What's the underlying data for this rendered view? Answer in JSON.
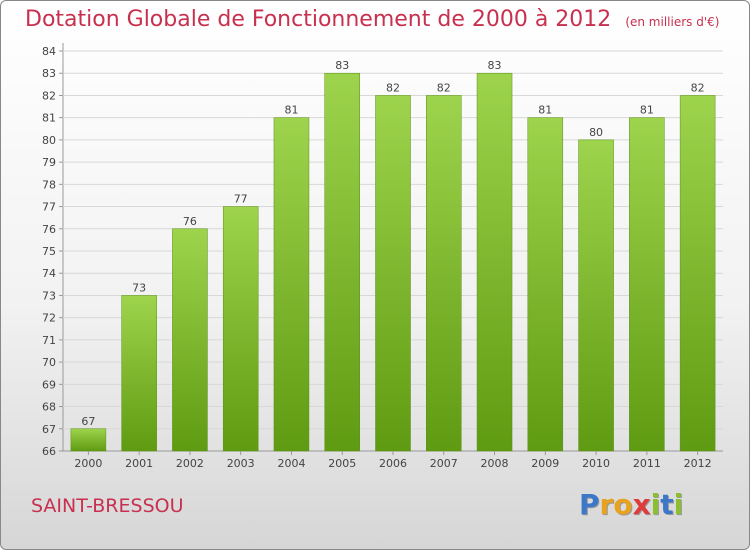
{
  "title": "Dotation Globale de Fonctionnement de 2000 à 2012",
  "unit": "(en milliers d'€)",
  "commune": "SAINT-BRESSOU",
  "logo": {
    "text": "Proxiti",
    "letter_colors": [
      "#3d78c8",
      "#e8a21e",
      "#e8a21e",
      "#e03a3a",
      "#8cbf2e",
      "#3d78c8",
      "#8cbf2e"
    ]
  },
  "colors": {
    "bar_top": "#9ed44d",
    "bar_bottom": "#5f9b12",
    "title": "#c8304f",
    "grid": "#d8d8d8"
  },
  "chart_data": {
    "type": "bar",
    "categories": [
      "2000",
      "2001",
      "2002",
      "2003",
      "2004",
      "2005",
      "2006",
      "2007",
      "2008",
      "2009",
      "2010",
      "2011",
      "2012"
    ],
    "values": [
      67,
      73,
      76,
      77,
      81,
      83,
      82,
      82,
      83,
      81,
      80,
      81,
      82
    ],
    "title": "Dotation Globale de Fonctionnement de 2000 à 2012",
    "xlabel": "",
    "ylabel": "",
    "ylim": [
      66,
      84
    ],
    "yticks": [
      66,
      67,
      68,
      69,
      70,
      71,
      72,
      73,
      74,
      75,
      76,
      77,
      78,
      79,
      80,
      81,
      82,
      83,
      84
    ],
    "grid": true,
    "data_labels": true
  }
}
